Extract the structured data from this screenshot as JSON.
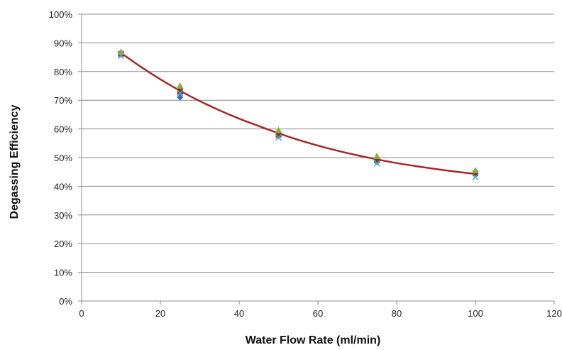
{
  "chart_data": {
    "type": "scatter",
    "title": "",
    "xlabel": "Water Flow Rate (ml/min)",
    "ylabel": "Degassing Efficiency",
    "xlim": [
      0,
      120
    ],
    "ylim": [
      0,
      1
    ],
    "x_ticks": [
      0,
      20,
      40,
      60,
      80,
      100,
      120
    ],
    "x_tick_labels": [
      "0",
      "20",
      "40",
      "60",
      "80",
      "100",
      "120"
    ],
    "y_ticks": [
      0,
      0.1,
      0.2,
      0.3,
      0.4,
      0.5,
      0.6,
      0.7,
      0.8,
      0.9,
      1.0
    ],
    "y_tick_labels": [
      "0%",
      "10%",
      "20%",
      "30%",
      "40%",
      "50%",
      "60%",
      "70%",
      "80%",
      "90%",
      "100%"
    ],
    "grid": "horizontal",
    "legend": "none",
    "x": [
      10,
      25,
      50,
      75,
      100
    ],
    "series": [
      {
        "marker": "diamond",
        "color": "#2e6fb7",
        "values": [
          0.86,
          0.71,
          0.575,
          0.485,
          0.44
        ]
      },
      {
        "marker": "square",
        "color": "#8b2a2a",
        "values": [
          0.862,
          0.73,
          0.58,
          0.49,
          0.445
        ]
      },
      {
        "marker": "triangle",
        "color": "#8aac3c",
        "values": [
          0.868,
          0.75,
          0.595,
          0.505,
          0.455
        ]
      },
      {
        "marker": "x",
        "color": "#4bacc6",
        "values": [
          0.855,
          0.725,
          0.57,
          0.48,
          0.432
        ]
      }
    ],
    "trendline": {
      "type": "smooth curve",
      "color": "#a3282a",
      "x": [
        10,
        15,
        20,
        25,
        30,
        35,
        40,
        45,
        50,
        55,
        60,
        65,
        70,
        75,
        80,
        85,
        90,
        95,
        100
      ],
      "values": [
        0.865,
        0.817,
        0.773,
        0.733,
        0.697,
        0.665,
        0.636,
        0.61,
        0.585,
        0.562,
        0.542,
        0.524,
        0.508,
        0.494,
        0.481,
        0.47,
        0.46,
        0.451,
        0.443
      ]
    }
  }
}
